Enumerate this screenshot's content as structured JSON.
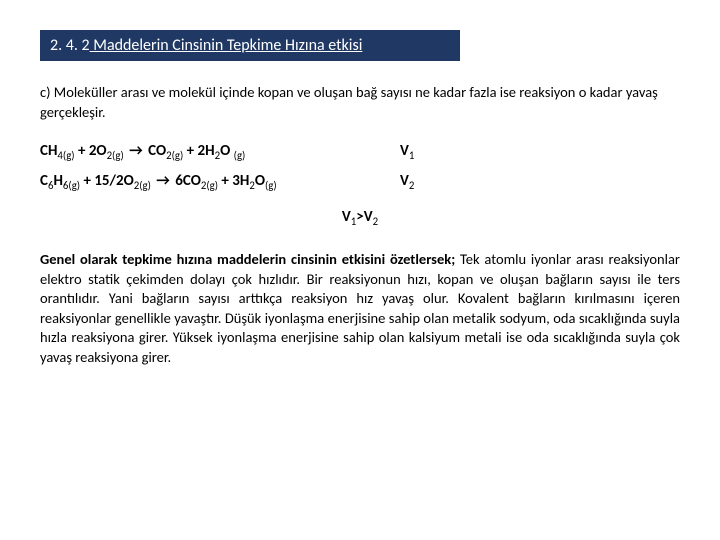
{
  "title": {
    "number": "2. 4. 2",
    "rest": " Maddelerin Cinsinin Tepkime Hızına etkisi"
  },
  "point_c": "c) Moleküller arası ve molekül içinde kopan ve oluşan bağ sayısı ne kadar fazla ise reaksiyon o kadar yavaş gerçekleşir.",
  "reactions": {
    "r1": {
      "lhs1": "CH",
      "lhs1_sub": "4(g)",
      "plus1": " + 2O",
      "plus1_sub": "2(g)",
      "arrow": "→",
      "rhs1": " CO",
      "rhs1_sub": "2(g)",
      "plus2": " + 2H",
      "plus2_sub": "2",
      "rhs2": "O ",
      "rhs2_sub": "(g)",
      "v_label": "V",
      "v_sub": "1"
    },
    "r2": {
      "lhs1": "C",
      "lhs1_sub": "6",
      "lhs2": "H",
      "lhs2_sub": "6(g)",
      "plus1": " + 15/2O",
      "plus1_sub": "2(g)",
      "arrow": "→",
      "rhs1": " 6CO",
      "rhs1_sub": "2(g)",
      "plus2": " + 3H",
      "plus2_sub": "2",
      "rhs2": "O",
      "rhs2_sub": "(g)",
      "v_label": "V",
      "v_sub": "2"
    }
  },
  "comparison": {
    "pre": "V",
    "s1": "1",
    "mid": ">V",
    "s2": "2"
  },
  "summary": {
    "lead": "Genel olarak tepkime hızına maddelerin cinsinin etkisini özetlersek;",
    "body": " Tek atomlu iyonlar arası reaksiyonlar elektro statik çekimden dolayı çok hızlıdır. Bir reaksiyonun hızı, kopan ve oluşan bağların sayısı ile ters orantılıdır. Yani bağların sayısı arttıkça reaksiyon hız yavaş olur. Kovalent bağların kırılmasını içeren reaksiyonlar genellikle yavaştır. Düşük iyonlaşma enerjisine sahip olan metalik sodyum, oda sıcaklığında suyla hızla reaksiyona girer. Yüksek iyonlaşma enerjisine sahip olan kalsiyum metali ise oda sıcaklığında suyla çok yavaş reaksiyona girer."
  },
  "colors": {
    "title_bg": "#1f3864",
    "title_fg": "#ffffff",
    "body_bg": "#ffffff",
    "text": "#000000"
  }
}
